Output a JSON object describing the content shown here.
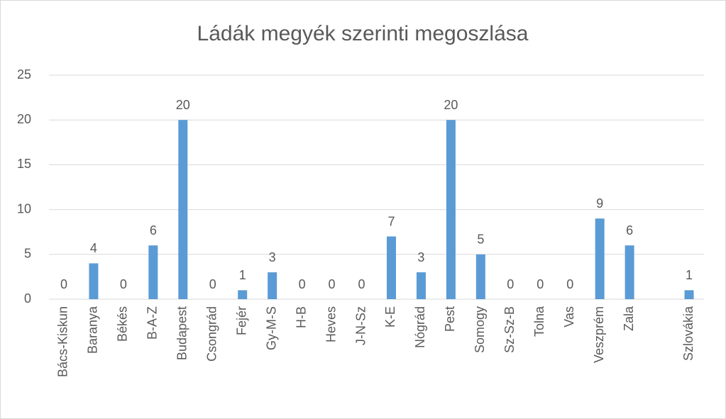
{
  "chart_data": {
    "type": "bar",
    "title": "Ládák megyék szerinti megoszlása",
    "categories": [
      "Bács-Kiskun",
      "Baranya",
      "Békés",
      "B-A-Z",
      "Budapest",
      "Csongrád",
      "Fejér",
      "Gy-M-S",
      "H-B",
      "Heves",
      "J-N-Sz",
      "K-E",
      "Nógrád",
      "Pest",
      "Somogy",
      "Sz-Sz-B",
      "Tolna",
      "Vas",
      "Veszprém",
      "Zala",
      null,
      "Szlovákia"
    ],
    "values": [
      0,
      4,
      0,
      6,
      20,
      0,
      1,
      3,
      0,
      0,
      0,
      7,
      3,
      20,
      5,
      0,
      0,
      0,
      9,
      6,
      null,
      1
    ],
    "color": "#5b9bd5",
    "ylim": [
      0,
      25
    ],
    "yticks": [
      0,
      5,
      10,
      15,
      20,
      25
    ],
    "grid": true
  }
}
